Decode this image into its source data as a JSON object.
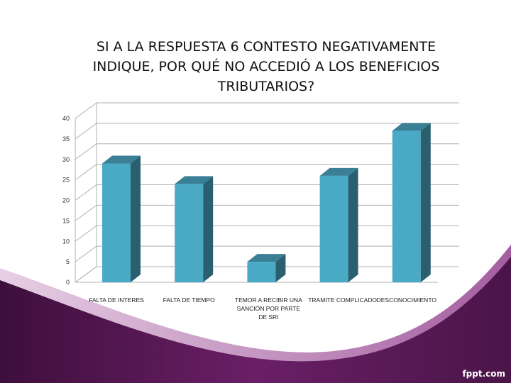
{
  "slide": {
    "watermark": "fppt.com",
    "colors": {
      "wave_dark": "#4a1548",
      "wave_mid": "#7d2a7a",
      "wave_light": "#b478b0",
      "bar_front": "#4aaac6",
      "bar_side": "#2a5f70",
      "bar_top": "#3a7f96",
      "grid": "#b0b0b0"
    }
  },
  "chart_data": {
    "type": "bar",
    "title": "SI A LA RESPUESTA 6 CONTESTO NEGATIVAMENTE INDIQUE, POR QUÉ NO ACCEDIÓ A LOS BENEFICIOS TRIBUTARIOS?",
    "categories": [
      "FALTA DE INTERES",
      "FALTA DE TIEMPO",
      "TEMOR A RECIBIR UNA SANCIÓN POR PARTE DE SRI",
      "TRAMITE COMPLICADO",
      "DESCONOCIMIENTO"
    ],
    "category_lines": [
      [
        "FALTA DE INTERES"
      ],
      [
        "FALTA DE TIEMPO"
      ],
      [
        "TEMOR A RECIBIR UNA",
        "SANCIÓN POR PARTE",
        "DE SRI"
      ],
      [
        "TRAMITE COMPLICADO"
      ],
      [
        "DESCONOCIMIENTO"
      ]
    ],
    "values": [
      29,
      24,
      5,
      26,
      37
    ],
    "ylim": [
      0,
      40
    ],
    "yticks": [
      "0",
      "5",
      "10",
      "15",
      "20",
      "25",
      "30",
      "35",
      "40"
    ],
    "grid": true,
    "style": "3d"
  }
}
